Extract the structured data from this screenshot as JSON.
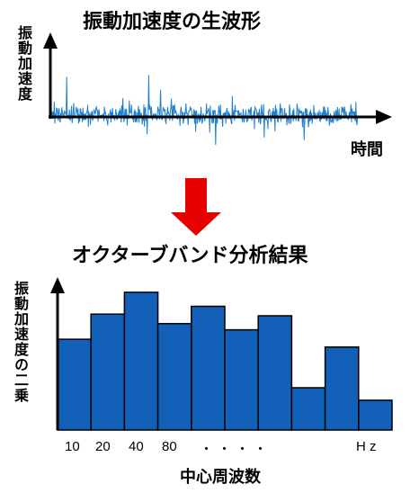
{
  "top_panel": {
    "title": "振動加速度の生波形",
    "y_label": "振動加速度",
    "x_label": "時間"
  },
  "bottom_panel": {
    "title": "オクターブバンド分析結果",
    "y_label": "振動加速度の二乗",
    "x_label": "中心周波数"
  },
  "colors": {
    "waveform": "#1f7fcf",
    "bars": "#1260b8",
    "arrow": "#e60000",
    "axis": "#000000"
  },
  "chart_data": {
    "type": "bar",
    "x_tick_labels": [
      "10",
      "20",
      "40",
      "80",
      "・",
      "・",
      "・",
      "・",
      "H z"
    ],
    "values": [
      0.58,
      0.74,
      0.88,
      0.68,
      0.79,
      0.64,
      0.73,
      0.27,
      0.53,
      0.19
    ],
    "ylim": [
      0,
      1
    ]
  }
}
